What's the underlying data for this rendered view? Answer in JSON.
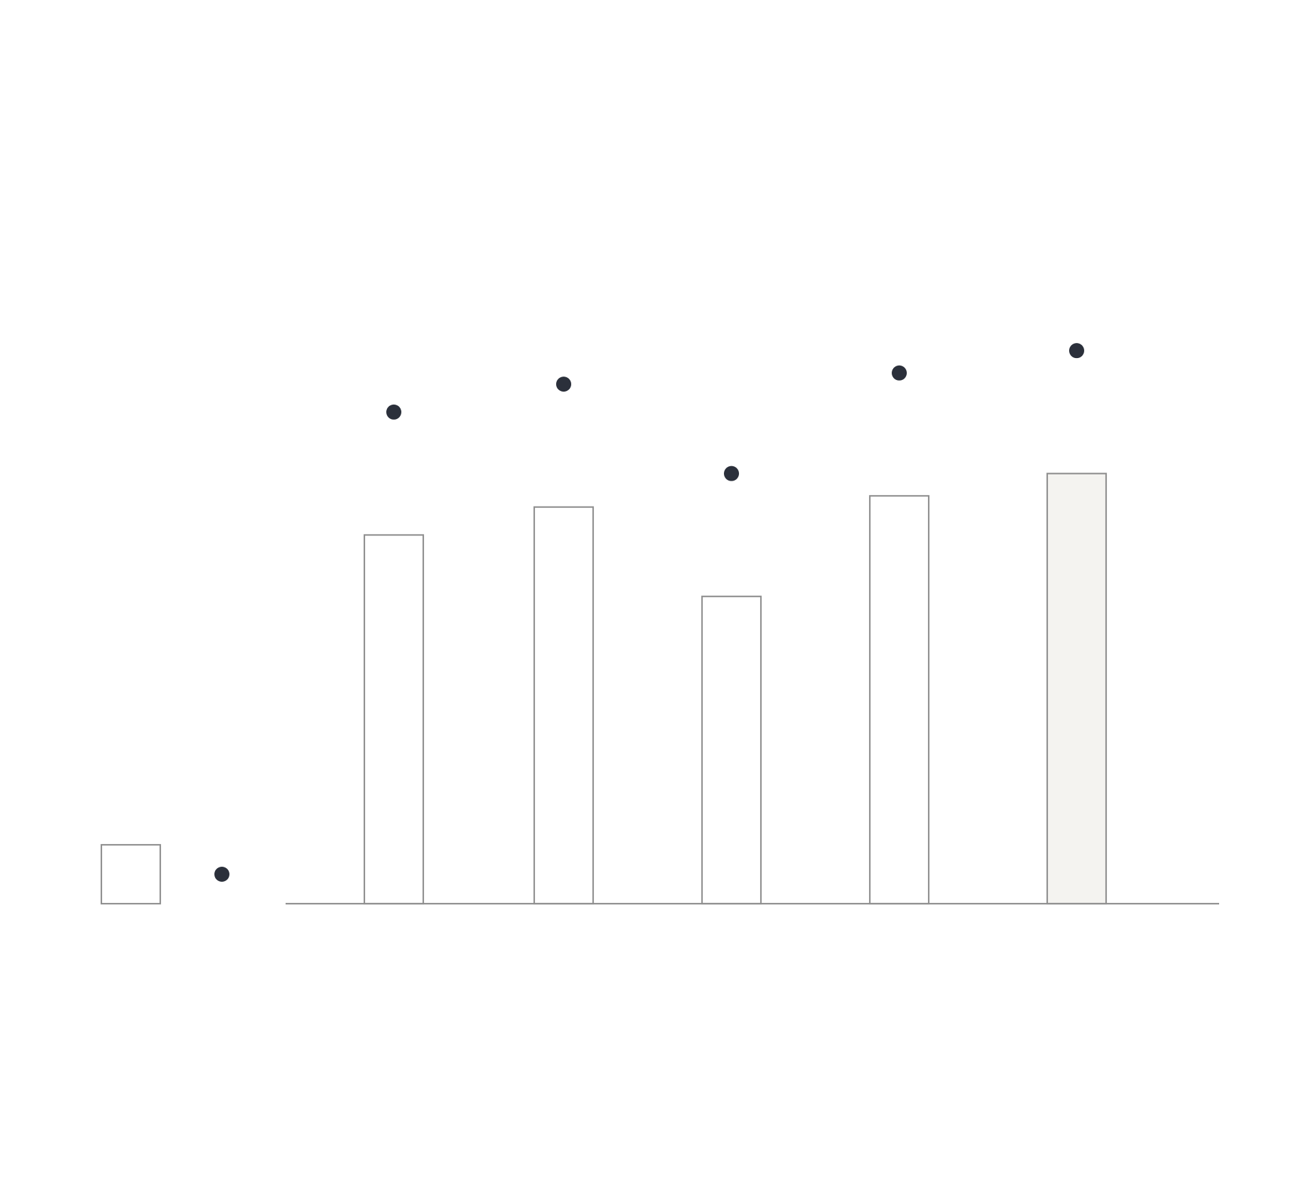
{
  "chart_data": {
    "type": "bar",
    "categories": [
      "",
      "",
      "",
      "",
      ""
    ],
    "series": [
      {
        "kind": "bar",
        "values": [
          66,
          71,
          55,
          73,
          77
        ]
      },
      {
        "kind": "point",
        "values": [
          88,
          93,
          77,
          95,
          99
        ]
      }
    ],
    "highlight_index": 4,
    "ylim": [
      0,
      150
    ],
    "grid": false,
    "legend": "left",
    "title": "",
    "xlabel": "",
    "ylabel": "",
    "colors": {
      "bar_fill": "#ffffff",
      "bar_highlight_fill": "#f4f3f0",
      "bar_stroke": "#8f8f8f",
      "point": "#2b303b",
      "axis": "#8f8f8f"
    }
  }
}
